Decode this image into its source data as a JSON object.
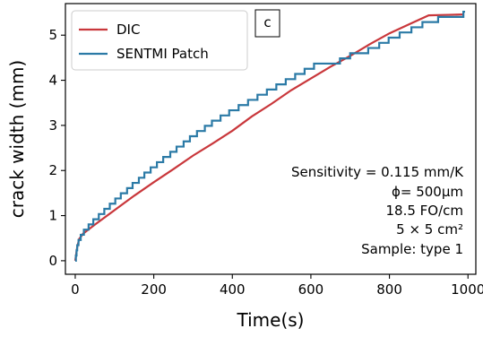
{
  "chart_data": {
    "type": "line",
    "panel_label": "c",
    "xlabel": "Time(s)",
    "ylabel": "crack width (mm)",
    "xlim": [
      -25,
      1020
    ],
    "ylim": [
      -0.3,
      5.7
    ],
    "x_ticks": [
      0,
      200,
      400,
      600,
      800,
      1000
    ],
    "y_ticks": [
      0,
      1,
      2,
      3,
      4,
      5
    ],
    "x_tick_labels": [
      "0",
      "200",
      "400",
      "600",
      "800",
      "1000"
    ],
    "y_tick_labels": [
      "0",
      "1",
      "2",
      "3",
      "4",
      "5"
    ],
    "grid": false,
    "legend_position": "top-left",
    "series": [
      {
        "name": "DIC",
        "color": "#c9373b",
        "style": "smooth",
        "x": [
          0,
          5,
          10,
          20,
          50,
          100,
          150,
          200,
          250,
          300,
          350,
          400,
          450,
          500,
          550,
          600,
          650,
          700,
          750,
          800,
          850,
          900,
          950,
          990
        ],
        "y": [
          0.0,
          0.3,
          0.48,
          0.6,
          0.8,
          1.12,
          1.44,
          1.74,
          2.03,
          2.33,
          2.6,
          2.88,
          3.2,
          3.48,
          3.78,
          4.04,
          4.3,
          4.54,
          4.8,
          5.04,
          5.24,
          5.44,
          5.45,
          5.46
        ]
      },
      {
        "name": "SENTMI Patch",
        "color": "#2b7aa6",
        "style": "steps",
        "step": 0.115,
        "x": [
          0,
          5,
          10,
          20,
          50,
          100,
          150,
          200,
          250,
          300,
          350,
          400,
          450,
          500,
          550,
          600,
          620,
          660,
          700,
          750,
          800,
          850,
          900,
          950,
          985,
          990
        ],
        "y": [
          0.0,
          0.3,
          0.47,
          0.62,
          0.9,
          1.32,
          1.7,
          2.08,
          2.42,
          2.76,
          3.06,
          3.32,
          3.56,
          3.8,
          4.04,
          4.28,
          4.37,
          4.37,
          4.55,
          4.67,
          4.9,
          5.1,
          5.3,
          5.4,
          5.4,
          5.5
        ]
      }
    ],
    "annotations": [
      "Sensitivity = 0.115 mm/K",
      "ϕ= 500μm",
      "18.5 FO/cm",
      "5 × 5 cm²",
      "Sample: type 1"
    ]
  }
}
